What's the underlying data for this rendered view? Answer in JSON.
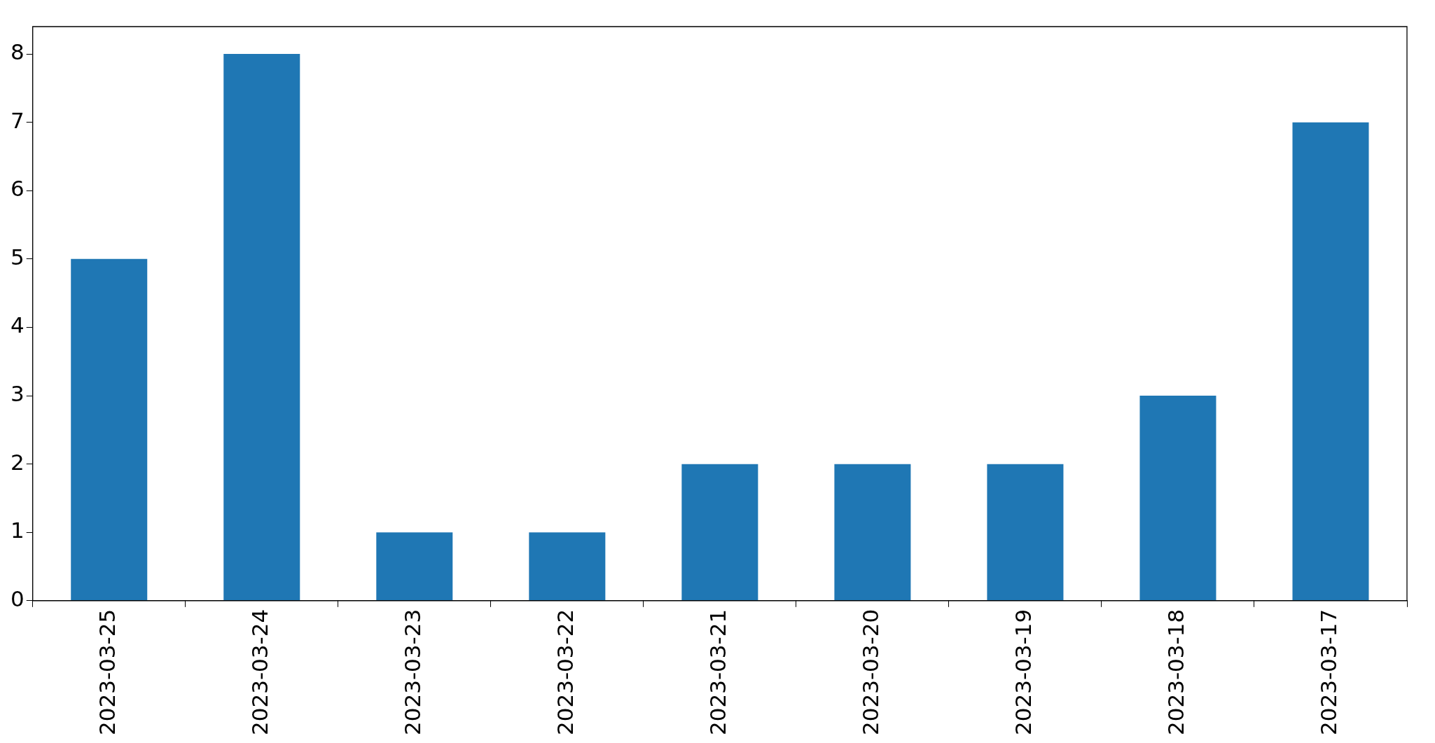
{
  "chart_data": {
    "type": "bar",
    "categories": [
      "2023-03-25",
      "2023-03-24",
      "2023-03-23",
      "2023-03-22",
      "2023-03-21",
      "2023-03-20",
      "2023-03-19",
      "2023-03-18",
      "2023-03-17"
    ],
    "values": [
      5,
      8,
      1,
      1,
      2,
      2,
      2,
      3,
      7
    ],
    "color": "#1f77b4",
    "ylim": [
      0,
      8.4
    ],
    "yticks": [
      0,
      1,
      2,
      3,
      4,
      5,
      6,
      7,
      8
    ],
    "grid": false,
    "legend": false
  }
}
